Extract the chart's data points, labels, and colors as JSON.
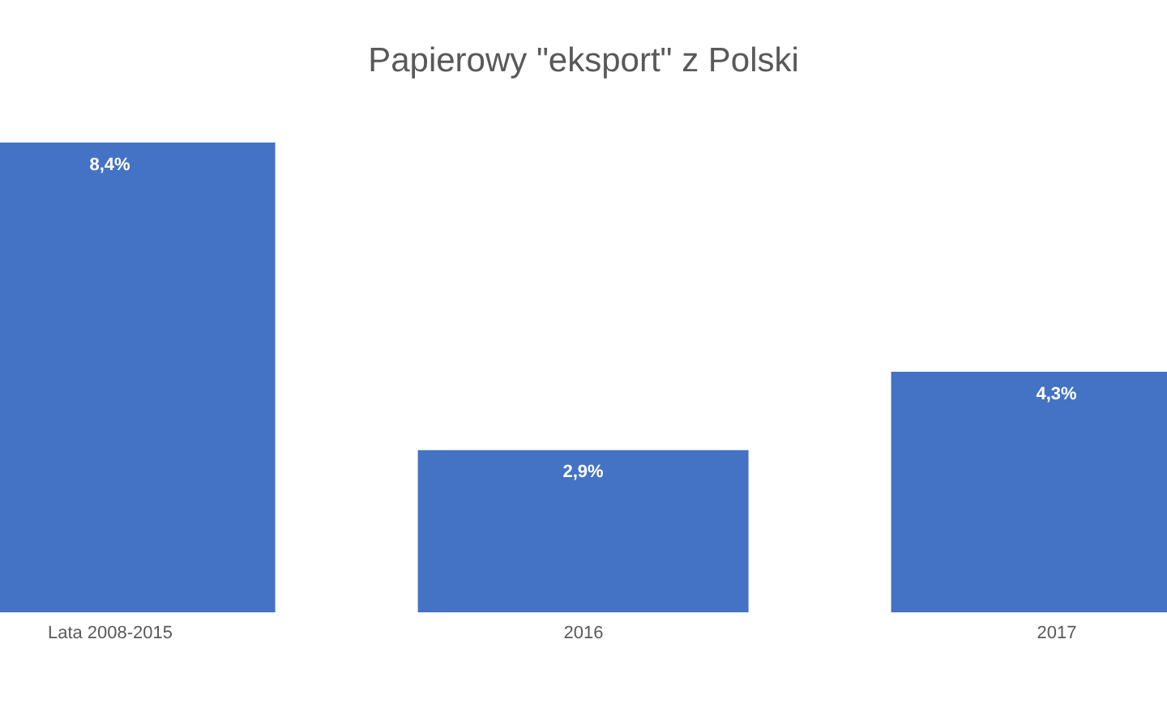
{
  "chart_data": {
    "type": "bar",
    "title": "Papierowy \"eksport\" z Polski",
    "categories": [
      "Lata 2008-2015",
      "2016",
      "2017"
    ],
    "values": [
      8.4,
      2.9,
      4.3
    ],
    "value_labels": [
      "8,4%",
      "2,9%",
      "4,3%"
    ],
    "color": "#4472c4"
  }
}
